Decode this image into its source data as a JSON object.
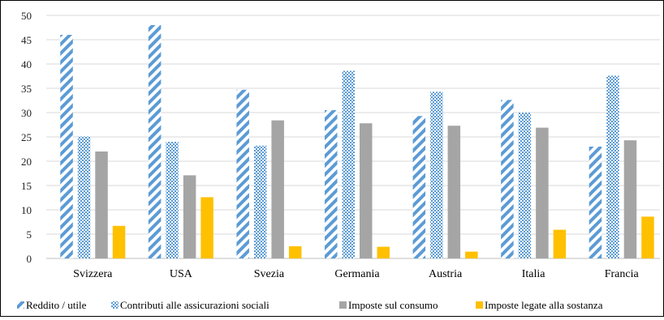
{
  "chart_data": {
    "type": "bar",
    "categories": [
      "Svizzera",
      "USA",
      "Svezia",
      "Germania",
      "Austria",
      "Italia",
      "Francia"
    ],
    "series": [
      {
        "name": "Reddito / utile",
        "values": [
          46,
          48,
          34.7,
          30.5,
          29.3,
          32.6,
          23.0
        ],
        "color": "#5B9BD5",
        "pattern": "diagonal-stripes"
      },
      {
        "name": "Contributi alle assicurazioni sociali",
        "values": [
          25.1,
          24.0,
          23.2,
          38.6,
          34.3,
          30.0,
          37.6
        ],
        "color": "#5B9BD5",
        "pattern": "checkerboard"
      },
      {
        "name": "Imposte sul consumo",
        "values": [
          22.0,
          17.1,
          28.4,
          27.8,
          27.3,
          26.9,
          24.3
        ],
        "color": "#A5A5A5",
        "pattern": "solid"
      },
      {
        "name": "Imposte legate alla sostanza",
        "values": [
          6.7,
          12.6,
          2.5,
          2.4,
          1.4,
          5.9,
          8.6
        ],
        "color": "#FFC000",
        "pattern": "solid"
      }
    ],
    "ylim": [
      0,
      50
    ],
    "yticks": [
      "0",
      "5",
      "10",
      "15",
      "20",
      "25",
      "30",
      "35",
      "40",
      "45",
      "50"
    ],
    "grid": true,
    "legend_position": "bottom-left",
    "title": "",
    "xlabel": "",
    "ylabel": ""
  }
}
